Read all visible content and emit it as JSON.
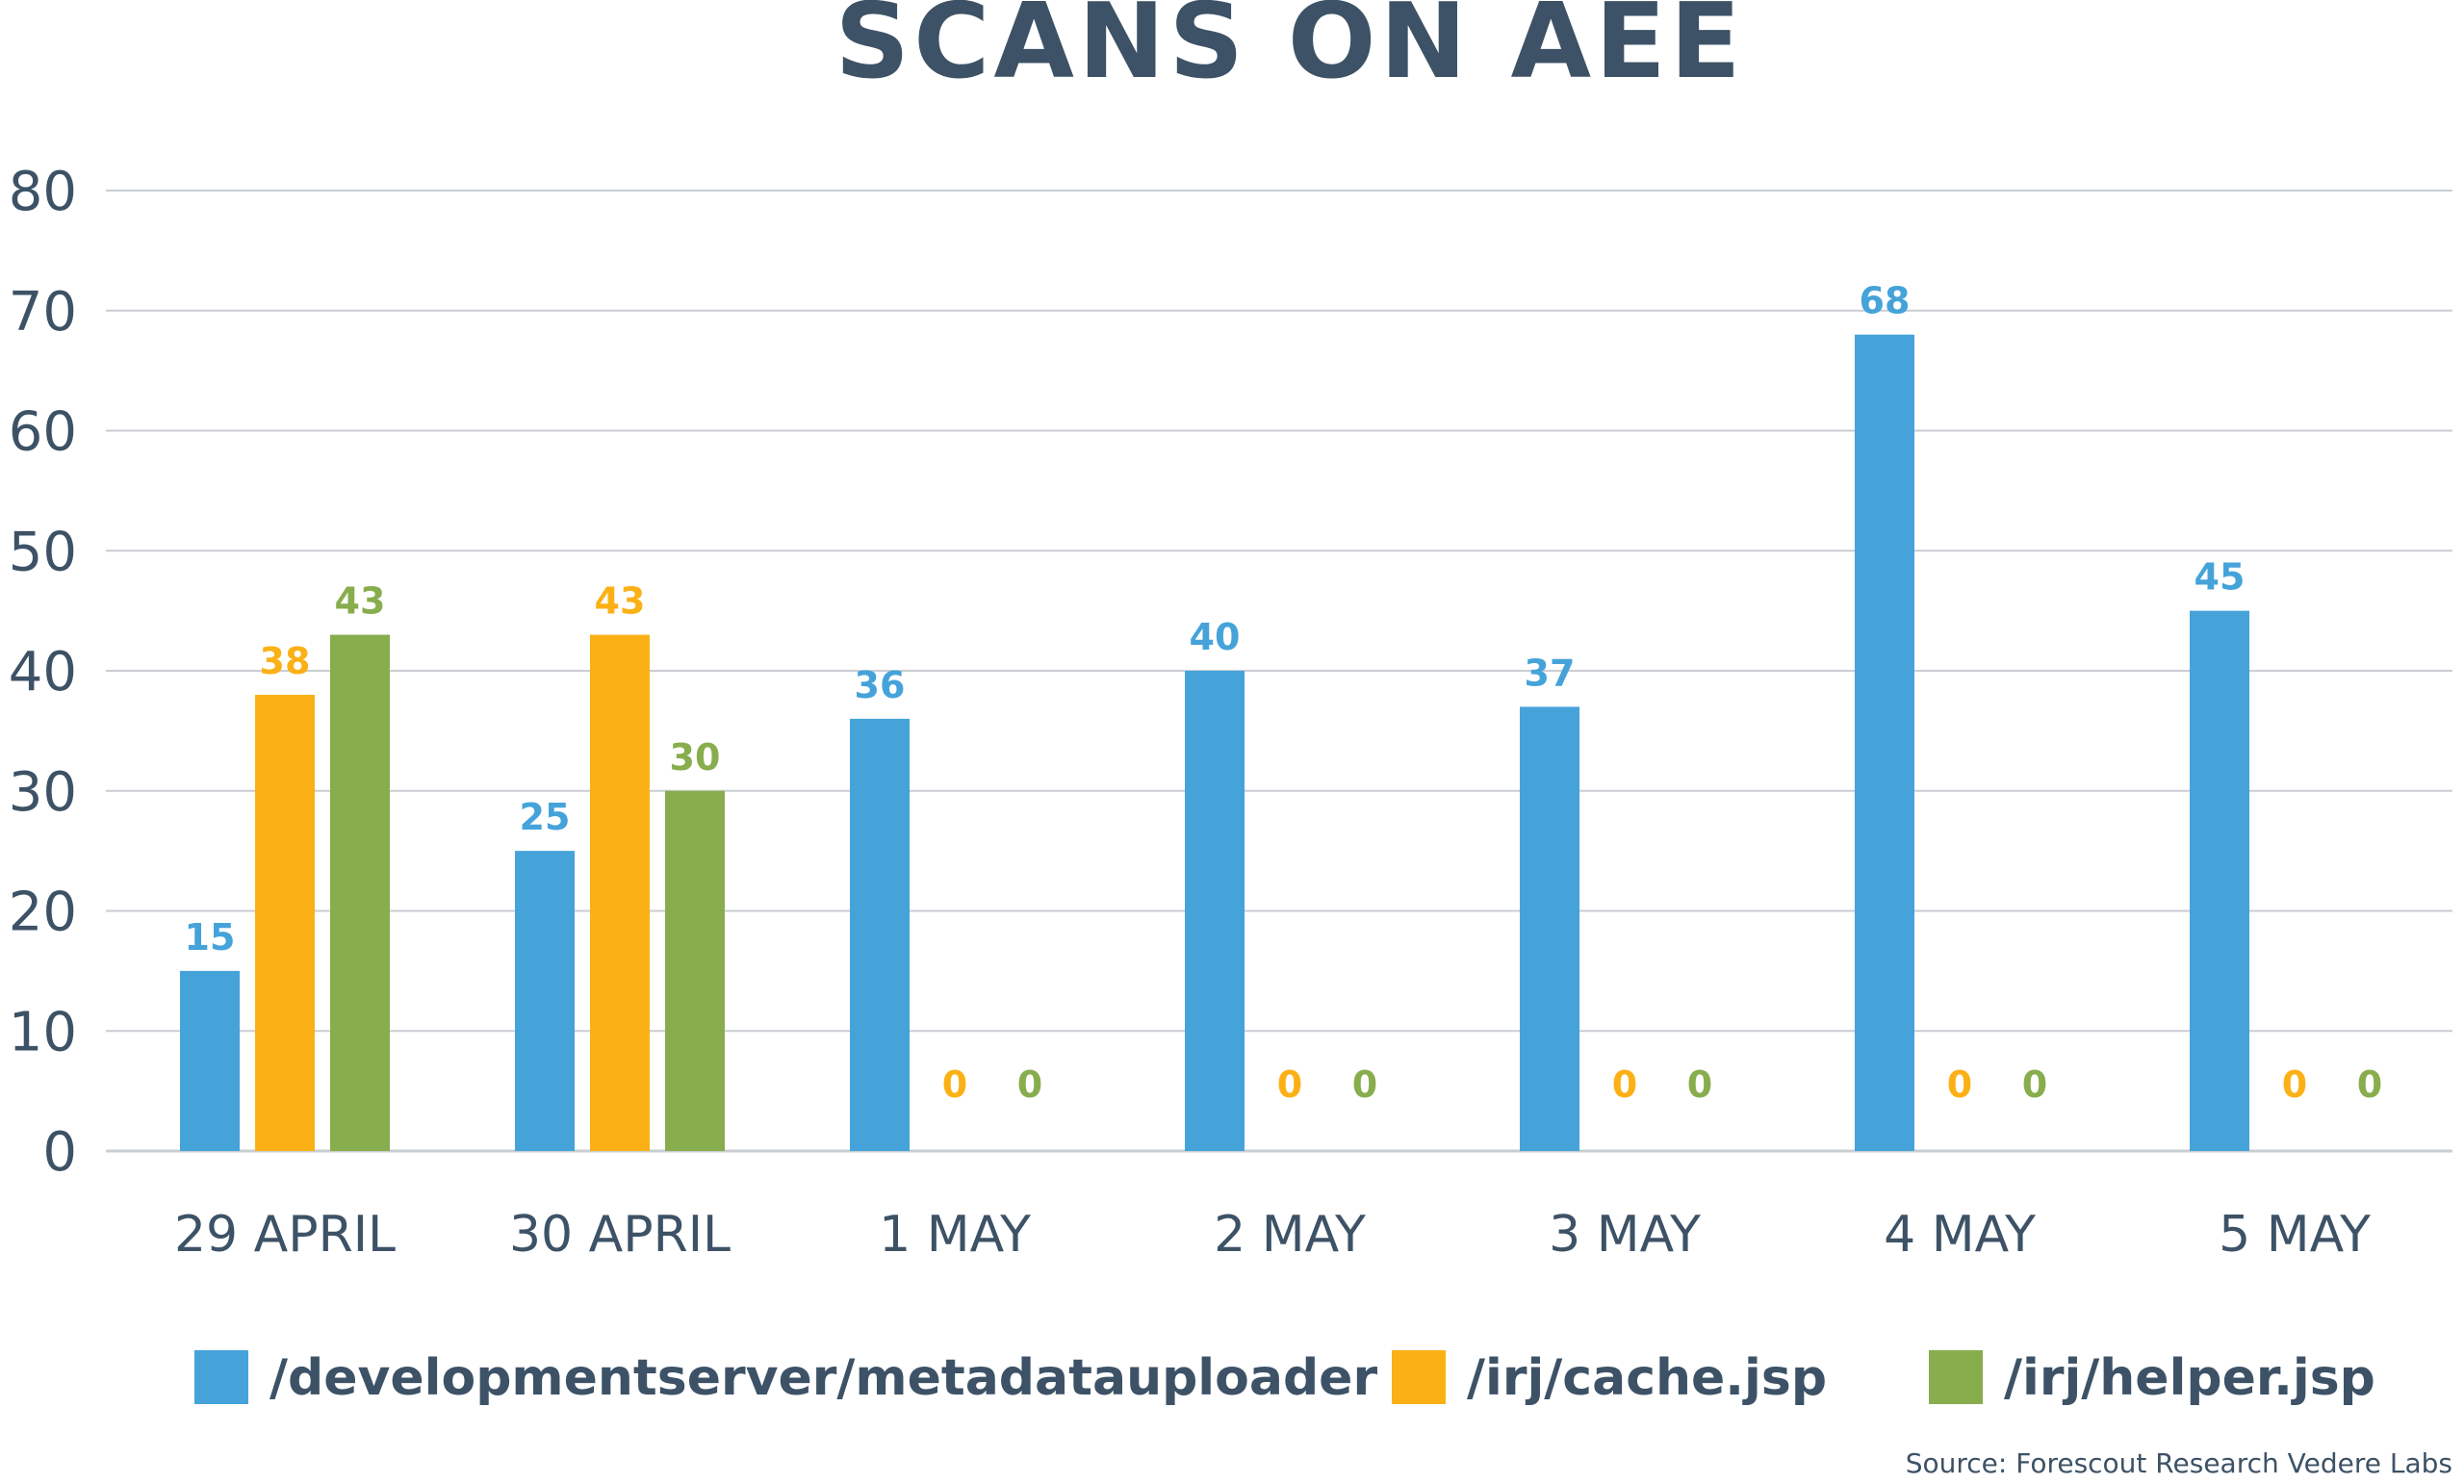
{
  "chart_data": {
    "type": "bar",
    "title": "SCANS ON AEE",
    "xlabel": "",
    "ylabel": "",
    "ylim": [
      0,
      80
    ],
    "yticks": [
      0,
      10,
      20,
      30,
      40,
      50,
      60,
      70,
      80
    ],
    "grid": true,
    "legend_position": "bottom",
    "categories": [
      "29 APRIL",
      "30 APRIL",
      "1 MAY",
      "2 MAY",
      "3 MAY",
      "4 MAY",
      "5 MAY"
    ],
    "series": [
      {
        "name": "/developmentserver/metadatauploader",
        "color": "#45a3da",
        "values": [
          15,
          25,
          36,
          40,
          37,
          68,
          45
        ]
      },
      {
        "name": "/irj/cache.jsp",
        "color": "#fbb116",
        "values": [
          38,
          43,
          0,
          0,
          0,
          0,
          0
        ]
      },
      {
        "name": "/irj/helper.jsp",
        "color": "#88ad4d",
        "values": [
          43,
          30,
          0,
          0,
          0,
          0,
          0
        ]
      }
    ],
    "source": "Source: Forescout Research Vedere Labs"
  }
}
